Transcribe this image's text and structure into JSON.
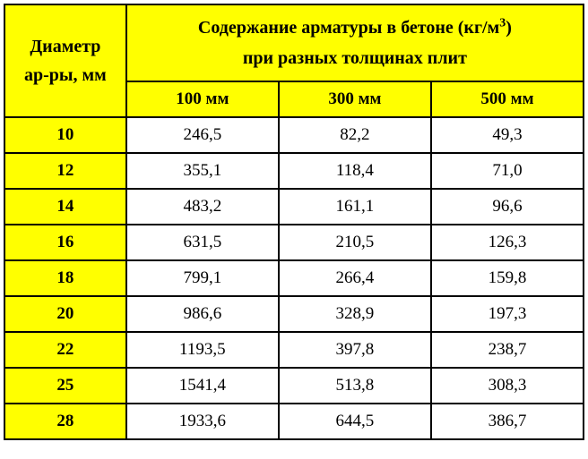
{
  "table": {
    "header": {
      "diameter_line1": "Диаметр",
      "diameter_line2": "ар-ры, мм",
      "content_line1": "Содержание арматуры в бетоне (кг/м",
      "content_sup": "3",
      "content_line1_end": ")",
      "content_line2": "при разных толщинах плит",
      "col_100": "100 мм",
      "col_300": "300 мм",
      "col_500": "500 мм"
    },
    "rows": [
      {
        "diameter": "10",
        "v100": "246,5",
        "v300": "82,2",
        "v500": "49,3"
      },
      {
        "diameter": "12",
        "v100": "355,1",
        "v300": "118,4",
        "v500": "71,0"
      },
      {
        "diameter": "14",
        "v100": "483,2",
        "v300": "161,1",
        "v500": "96,6"
      },
      {
        "diameter": "16",
        "v100": "631,5",
        "v300": "210,5",
        "v500": "126,3"
      },
      {
        "diameter": "18",
        "v100": "799,1",
        "v300": "266,4",
        "v500": "159,8"
      },
      {
        "diameter": "20",
        "v100": "986,6",
        "v300": "328,9",
        "v500": "197,3"
      },
      {
        "diameter": "22",
        "v100": "1193,5",
        "v300": "397,8",
        "v500": "238,7"
      },
      {
        "diameter": "25",
        "v100": "1541,4",
        "v300": "513,8",
        "v500": "308,3"
      },
      {
        "diameter": "28",
        "v100": "1933,6",
        "v300": "644,5",
        "v500": "386,7"
      }
    ],
    "colors": {
      "header_bg": "#ffff00",
      "cell_bg": "#ffffff",
      "border": "#000000",
      "text": "#000000"
    }
  }
}
